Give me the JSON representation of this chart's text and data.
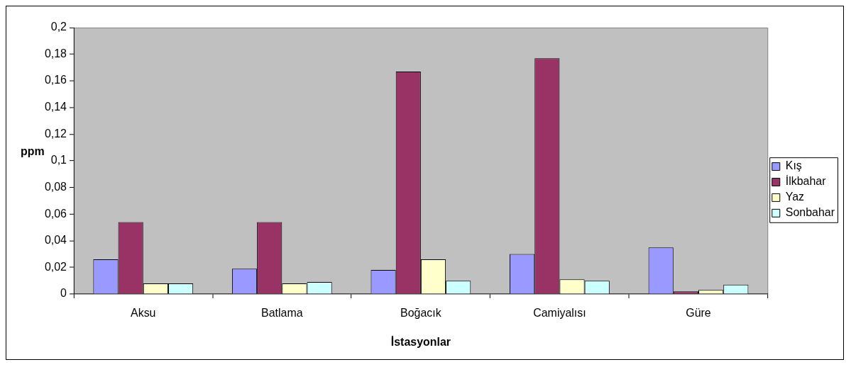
{
  "chart_data": {
    "type": "bar",
    "xlabel": "İstasyonlar",
    "ylabel": "ppm",
    "categories": [
      "Aksu",
      "Batlama",
      "Boğacık",
      "Camiyalısı",
      "Güre"
    ],
    "series": [
      {
        "name": "Kış",
        "color": "#9999ff",
        "values": [
          0.026,
          0.019,
          0.018,
          0.03,
          0.035
        ]
      },
      {
        "name": "İlkbahar",
        "color": "#993366",
        "values": [
          0.054,
          0.054,
          0.167,
          0.177,
          0.002
        ]
      },
      {
        "name": "Yaz",
        "color": "#ffffcc",
        "values": [
          0.008,
          0.008,
          0.026,
          0.011,
          0.003
        ]
      },
      {
        "name": "Sonbahar",
        "color": "#ccffff",
        "values": [
          0.008,
          0.009,
          0.01,
          0.01,
          0.007
        ]
      }
    ],
    "ylim": [
      0,
      0.2
    ],
    "yticks": [
      0,
      {
        "value": 0.02,
        "label": "0,02"
      },
      {
        "value": 0.04,
        "label": "0,04"
      },
      {
        "value": 0.06,
        "label": "0,06"
      },
      {
        "value": 0.08,
        "label": "0,08"
      },
      {
        "value": 0.1,
        "label": "0,1"
      },
      {
        "value": 0.12,
        "label": "0,12"
      },
      {
        "value": 0.14,
        "label": "0,14"
      },
      {
        "value": 0.16,
        "label": "0,16"
      },
      {
        "value": 0.18,
        "label": "0,18"
      },
      {
        "value": 0.2,
        "label": "0,2"
      }
    ],
    "grid": false,
    "legend": "right"
  }
}
